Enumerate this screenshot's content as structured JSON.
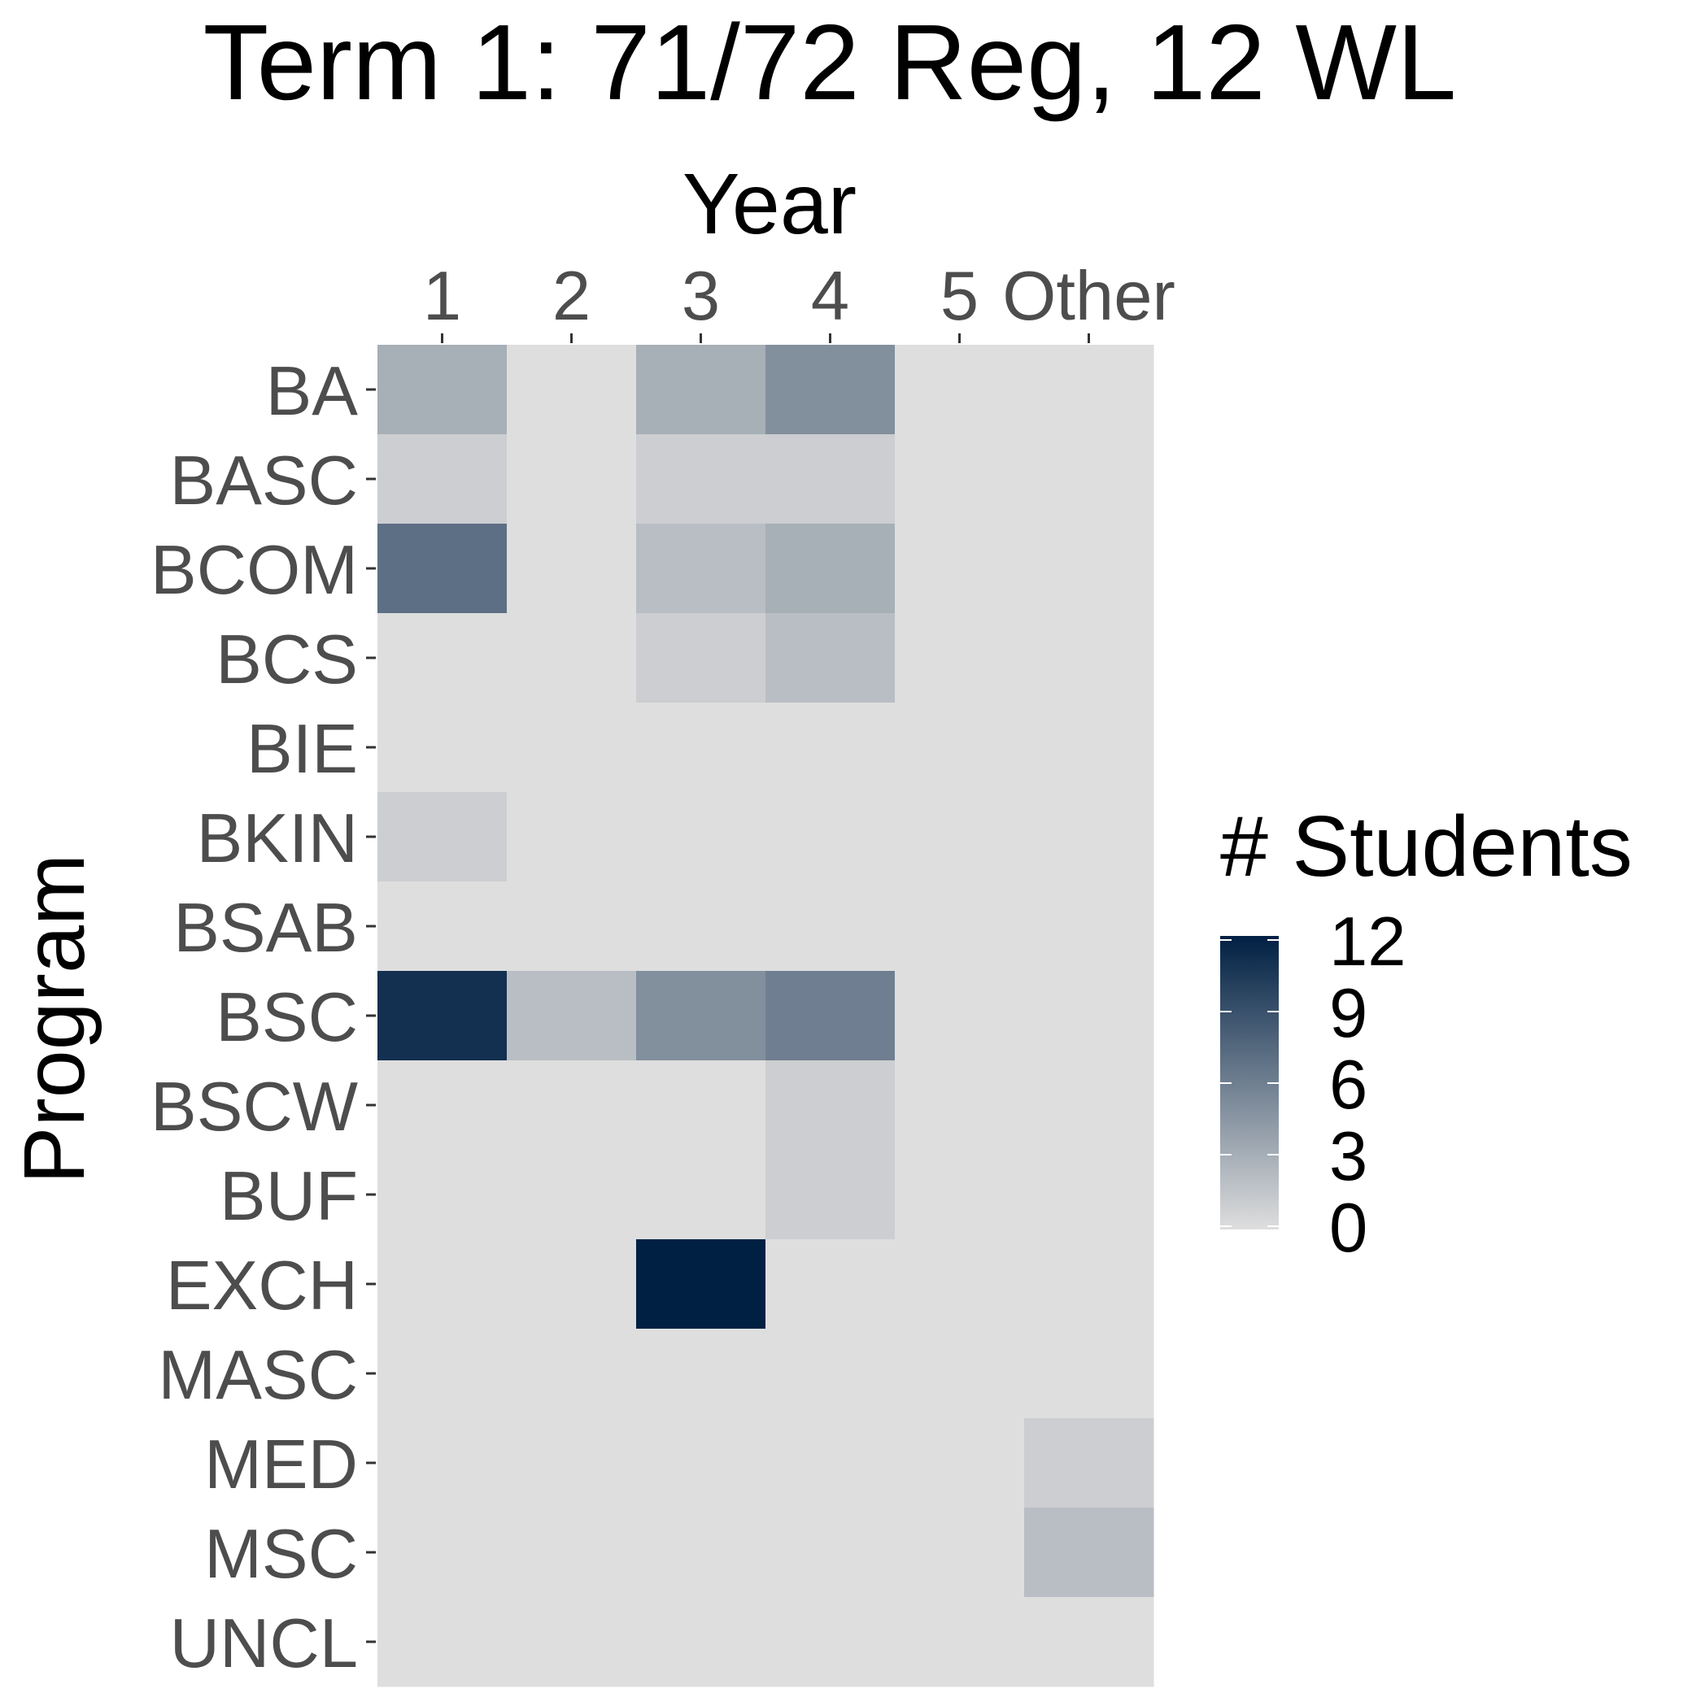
{
  "chart_data": {
    "type": "heatmap",
    "title": "Term 1: 71/72 Reg, 12 WL",
    "xlabel": "Year",
    "ylabel": "Program",
    "x_axis_position": "top",
    "x_categories": [
      "1",
      "2",
      "3",
      "4",
      "5",
      "Other"
    ],
    "y_categories": [
      "BA",
      "BASC",
      "BCOM",
      "BCS",
      "BIE",
      "BKIN",
      "BSAB",
      "BSC",
      "BSCW",
      "BUF",
      "EXCH",
      "MASC",
      "MED",
      "MSC",
      "UNCL"
    ],
    "values": [
      [
        3,
        0,
        3,
        5,
        0,
        0
      ],
      [
        1,
        0,
        1,
        1,
        0,
        0
      ],
      [
        7,
        0,
        2,
        3,
        0,
        0
      ],
      [
        0,
        0,
        1,
        2,
        0,
        0
      ],
      [
        0,
        0,
        0,
        0,
        0,
        0
      ],
      [
        1,
        0,
        0,
        0,
        0,
        0
      ],
      [
        0,
        0,
        0,
        0,
        0,
        0
      ],
      [
        11,
        2,
        5,
        6,
        0,
        0
      ],
      [
        0,
        0,
        0,
        1,
        0,
        0
      ],
      [
        0,
        0,
        0,
        1,
        0,
        0
      ],
      [
        0,
        0,
        12,
        0,
        0,
        0
      ],
      [
        0,
        0,
        0,
        0,
        0,
        0
      ],
      [
        0,
        0,
        0,
        0,
        0,
        1
      ],
      [
        0,
        0,
        0,
        0,
        0,
        2
      ],
      [
        0,
        0,
        0,
        0,
        0,
        0
      ]
    ],
    "legend": {
      "title": "# Students",
      "ticks": [
        "12",
        "9",
        "6",
        "3",
        "0"
      ],
      "tick_values": [
        12,
        9,
        6,
        3,
        0
      ],
      "range": [
        0,
        12
      ],
      "placement": "right"
    },
    "colors": {
      "low": "#dedede",
      "high": "#002043",
      "axis_text": "#4d4d4d",
      "title_text": "#000000"
    },
    "grid": false
  }
}
